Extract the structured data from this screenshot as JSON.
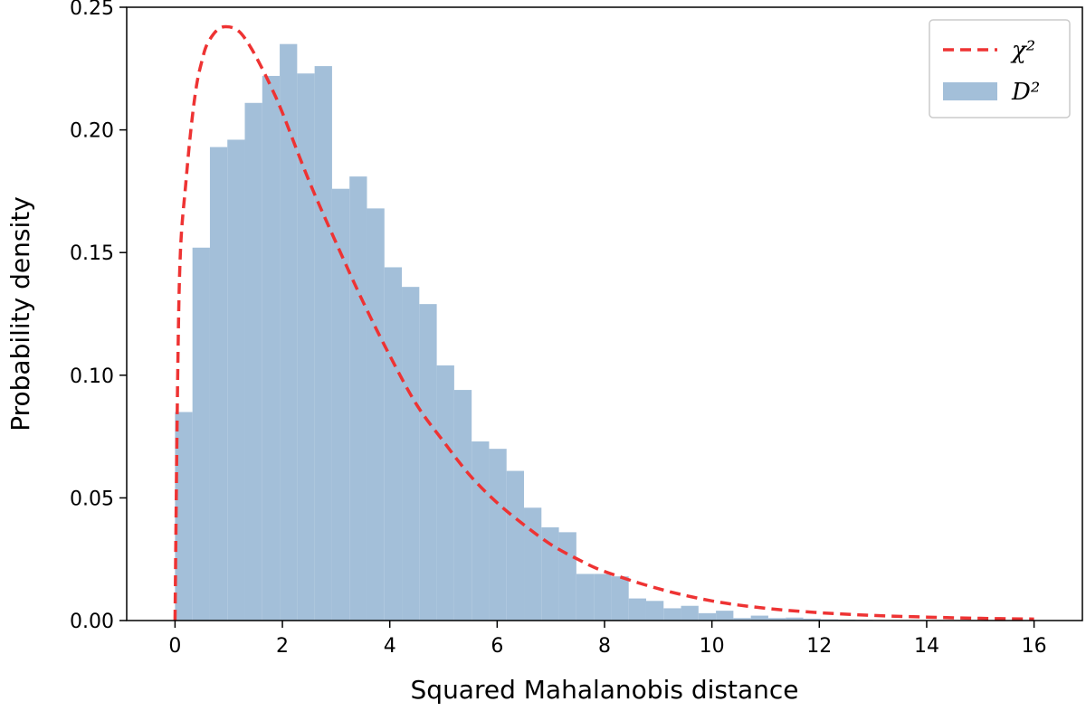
{
  "chart_data": {
    "type": "bar",
    "xlabel": "Squared Mahalanobis distance",
    "ylabel": "Probability density",
    "xlim": [
      -0.9,
      16.9
    ],
    "ylim": [
      0,
      0.25
    ],
    "xticks": [
      "0",
      "2",
      "4",
      "6",
      "8",
      "10",
      "12",
      "14",
      "16"
    ],
    "yticks": [
      "0.00",
      "0.05",
      "0.10",
      "0.15",
      "0.20",
      "0.25"
    ],
    "grid": false,
    "legend_position": "top-right",
    "series": [
      {
        "name": "χ²",
        "kind": "line",
        "style": "dashed",
        "color": "#ee3333",
        "x": [
          0.0,
          0.05,
          0.1,
          0.2,
          0.3,
          0.4,
          0.5,
          0.6,
          0.8,
          1.0,
          1.2,
          1.4,
          1.6,
          1.8,
          2.0,
          2.5,
          3.0,
          3.5,
          4.0,
          4.5,
          5.0,
          5.5,
          6.0,
          6.5,
          7.0,
          7.5,
          8.0,
          9.0,
          10.0,
          11.0,
          12.0,
          13.0,
          14.0,
          15.0,
          16.0
        ],
        "y": [
          0.0,
          0.1,
          0.15,
          0.178,
          0.201,
          0.218,
          0.228,
          0.235,
          0.241,
          0.242,
          0.24,
          0.234,
          0.226,
          0.217,
          0.207,
          0.179,
          0.154,
          0.13,
          0.108,
          0.088,
          0.073,
          0.059,
          0.048,
          0.039,
          0.031,
          0.025,
          0.02,
          0.013,
          0.008,
          0.005,
          0.0032,
          0.0021,
          0.0014,
          0.0009,
          0.0006
        ]
      },
      {
        "name": "D²",
        "kind": "histogram",
        "color": "#a3bfd9",
        "bin_width": 0.325,
        "bin_start": 0.0,
        "values": [
          0.085,
          0.152,
          0.193,
          0.196,
          0.211,
          0.222,
          0.235,
          0.223,
          0.226,
          0.176,
          0.181,
          0.168,
          0.144,
          0.136,
          0.129,
          0.104,
          0.094,
          0.073,
          0.07,
          0.061,
          0.046,
          0.038,
          0.036,
          0.019,
          0.019,
          0.018,
          0.009,
          0.008,
          0.005,
          0.006,
          0.003,
          0.004,
          0.001,
          0.002,
          0.001,
          0.0012,
          0.0008,
          0.0005,
          0.0004,
          0.0003,
          0.0002,
          0.0001,
          0.0001
        ]
      }
    ]
  }
}
